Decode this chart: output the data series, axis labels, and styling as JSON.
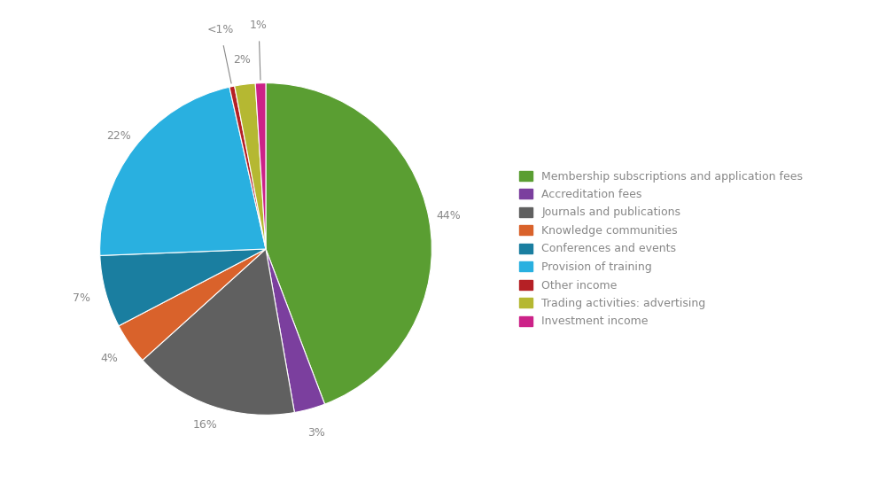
{
  "labels": [
    "Membership subscriptions and application fees",
    "Accreditation fees",
    "Journals and publications",
    "Knowledge communities",
    "Conferences and events",
    "Provision of training",
    "Other income",
    "Trading activities: advertising",
    "Investment income"
  ],
  "percentages": [
    44,
    3,
    16,
    4,
    7,
    22,
    0.5,
    2,
    1
  ],
  "colors": [
    "#5a9e32",
    "#7b3f9e",
    "#606060",
    "#d9622b",
    "#1a7ea0",
    "#29b0e0",
    "#b52025",
    "#b5b832",
    "#cc2288"
  ],
  "pct_labels": [
    "44%",
    "3%",
    "16%",
    "4%",
    "7%",
    "22%",
    "<1%",
    "2%",
    "1%"
  ],
  "background_color": "#ffffff",
  "text_color": "#888888"
}
